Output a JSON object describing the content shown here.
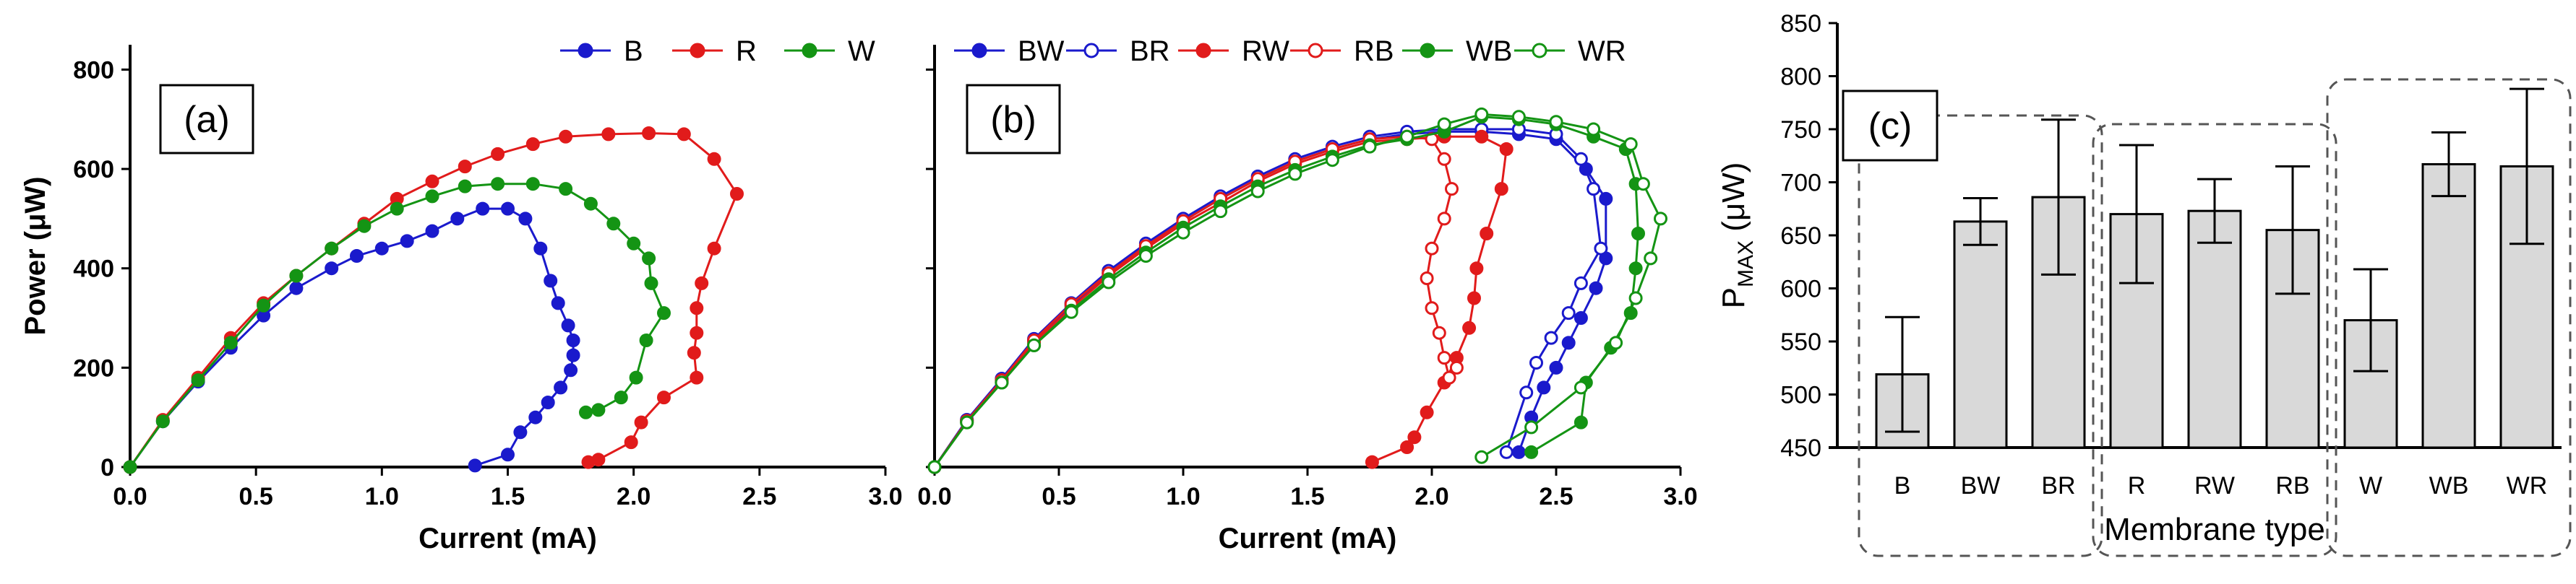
{
  "chart_data": [
    {
      "id": "a",
      "type": "line",
      "panel_label": "(a)",
      "xlabel": "Current (mA)",
      "ylabel": "Power (μW)",
      "xlim": [
        0,
        3.0
      ],
      "ylim": [
        0,
        850
      ],
      "xticks": [
        "0.0",
        "0.5",
        "1.0",
        "1.5",
        "2.0",
        "2.5",
        "3.0"
      ],
      "yticks": [
        "0",
        "200",
        "400",
        "600",
        "800"
      ],
      "legend_position": "top-right",
      "series": [
        {
          "name": "B",
          "color": "#1a1acc",
          "marker": "filled",
          "x": [
            0,
            0.13,
            0.27,
            0.4,
            0.53,
            0.66,
            0.8,
            0.9,
            1.0,
            1.1,
            1.2,
            1.3,
            1.4,
            1.5,
            1.57,
            1.63,
            1.67,
            1.7,
            1.74,
            1.76,
            1.76,
            1.75,
            1.71,
            1.66,
            1.61,
            1.55,
            1.5,
            1.37
          ],
          "y": [
            0,
            92,
            172,
            240,
            305,
            360,
            400,
            425,
            440,
            455,
            475,
            500,
            520,
            520,
            500,
            440,
            375,
            330,
            285,
            255,
            225,
            195,
            160,
            130,
            100,
            70,
            25,
            3
          ]
        },
        {
          "name": "R",
          "color": "#e11b1b",
          "marker": "filled",
          "x": [
            0,
            0.13,
            0.27,
            0.4,
            0.53,
            0.66,
            0.8,
            0.93,
            1.06,
            1.2,
            1.33,
            1.46,
            1.6,
            1.73,
            1.9,
            2.06,
            2.2,
            2.32,
            2.41,
            2.32,
            2.27,
            2.25,
            2.25,
            2.24,
            2.25,
            2.12,
            2.03,
            1.99,
            1.86,
            1.82
          ],
          "y": [
            0,
            95,
            180,
            260,
            330,
            385,
            440,
            490,
            540,
            575,
            605,
            630,
            650,
            665,
            670,
            672,
            670,
            620,
            550,
            440,
            370,
            320,
            270,
            230,
            180,
            140,
            90,
            50,
            15,
            10
          ]
        },
        {
          "name": "W",
          "color": "#149414",
          "marker": "filled",
          "x": [
            0,
            0.13,
            0.27,
            0.4,
            0.53,
            0.66,
            0.8,
            0.93,
            1.06,
            1.2,
            1.33,
            1.46,
            1.6,
            1.73,
            1.83,
            1.92,
            2.0,
            2.06,
            2.07,
            2.12,
            2.05,
            2.01,
            1.95,
            1.86,
            1.81
          ],
          "y": [
            0,
            92,
            175,
            250,
            325,
            385,
            440,
            485,
            520,
            545,
            565,
            570,
            570,
            560,
            530,
            490,
            450,
            420,
            370,
            310,
            255,
            180,
            140,
            115,
            110
          ]
        }
      ]
    },
    {
      "id": "b",
      "type": "line",
      "panel_label": "(b)",
      "xlabel": "Current (mA)",
      "ylabel": "",
      "xlim": [
        0,
        3.0
      ],
      "ylim": [
        0,
        850
      ],
      "xticks": [
        "0.0",
        "0.5",
        "1.0",
        "1.5",
        "2.0",
        "2.5",
        "3.0"
      ],
      "legend_position": "top",
      "series": [
        {
          "name": "BW",
          "color": "#1a1acc",
          "marker": "filled",
          "x": [
            0,
            0.13,
            0.27,
            0.4,
            0.55,
            0.7,
            0.85,
            1.0,
            1.15,
            1.3,
            1.45,
            1.6,
            1.75,
            1.9,
            2.05,
            2.2,
            2.35,
            2.5,
            2.62,
            2.7,
            2.7,
            2.66,
            2.6,
            2.55,
            2.5,
            2.45,
            2.4,
            2.35
          ],
          "y": [
            0,
            95,
            175,
            255,
            325,
            390,
            445,
            495,
            540,
            580,
            615,
            640,
            660,
            670,
            675,
            675,
            670,
            660,
            600,
            540,
            420,
            360,
            300,
            250,
            200,
            160,
            100,
            30
          ]
        },
        {
          "name": "BR",
          "color": "#1a1acc",
          "marker": "open",
          "x": [
            0,
            0.13,
            0.27,
            0.4,
            0.55,
            0.7,
            0.85,
            1.0,
            1.15,
            1.3,
            1.45,
            1.6,
            1.75,
            1.9,
            2.05,
            2.2,
            2.35,
            2.5,
            2.6,
            2.65,
            2.68,
            2.6,
            2.55,
            2.48,
            2.42,
            2.38,
            2.3
          ],
          "y": [
            0,
            95,
            178,
            258,
            330,
            395,
            450,
            500,
            545,
            585,
            620,
            645,
            665,
            675,
            680,
            680,
            680,
            670,
            620,
            560,
            440,
            370,
            310,
            260,
            210,
            150,
            30
          ]
        },
        {
          "name": "RW",
          "color": "#e11b1b",
          "marker": "filled",
          "x": [
            0,
            0.13,
            0.27,
            0.4,
            0.55,
            0.7,
            0.85,
            1.0,
            1.15,
            1.3,
            1.45,
            1.6,
            1.75,
            1.9,
            2.05,
            2.2,
            2.3,
            2.28,
            2.22,
            2.18,
            2.17,
            2.15,
            2.1,
            2.05,
            1.98,
            1.93,
            1.9,
            1.76
          ],
          "y": [
            0,
            92,
            172,
            250,
            320,
            385,
            440,
            490,
            532,
            575,
            610,
            635,
            655,
            660,
            665,
            665,
            640,
            560,
            470,
            400,
            340,
            280,
            220,
            170,
            110,
            60,
            40,
            10
          ]
        },
        {
          "name": "RB",
          "color": "#e11b1b",
          "marker": "open",
          "x": [
            0,
            0.13,
            0.27,
            0.4,
            0.55,
            0.7,
            0.85,
            1.0,
            1.15,
            1.3,
            1.45,
            1.6,
            1.75,
            1.9,
            2.0,
            2.05,
            2.08,
            2.05,
            2.0,
            1.98,
            2.0,
            2.03,
            2.05,
            2.07,
            2.1
          ],
          "y": [
            0,
            93,
            175,
            255,
            328,
            390,
            445,
            495,
            540,
            580,
            615,
            640,
            660,
            665,
            660,
            620,
            560,
            500,
            440,
            380,
            320,
            270,
            220,
            180,
            200
          ]
        },
        {
          "name": "WB",
          "color": "#149414",
          "marker": "filled",
          "x": [
            0,
            0.13,
            0.27,
            0.4,
            0.55,
            0.7,
            0.85,
            1.0,
            1.15,
            1.3,
            1.45,
            1.6,
            1.75,
            1.9,
            2.05,
            2.2,
            2.35,
            2.5,
            2.65,
            2.78,
            2.82,
            2.83,
            2.82,
            2.8,
            2.72,
            2.62,
            2.6,
            2.4
          ],
          "y": [
            0,
            90,
            170,
            245,
            315,
            378,
            432,
            482,
            525,
            565,
            598,
            625,
            648,
            660,
            675,
            705,
            700,
            690,
            665,
            640,
            570,
            470,
            400,
            310,
            240,
            170,
            90,
            30
          ]
        },
        {
          "name": "WR",
          "color": "#149414",
          "marker": "open",
          "x": [
            0,
            0.13,
            0.27,
            0.4,
            0.55,
            0.7,
            0.85,
            1.0,
            1.15,
            1.3,
            1.45,
            1.6,
            1.75,
            1.9,
            2.05,
            2.2,
            2.35,
            2.5,
            2.65,
            2.8,
            2.85,
            2.92,
            2.88,
            2.82,
            2.74,
            2.6,
            2.4,
            2.2
          ],
          "y": [
            0,
            90,
            170,
            245,
            312,
            372,
            425,
            472,
            515,
            555,
            590,
            618,
            645,
            665,
            690,
            710,
            705,
            695,
            680,
            650,
            570,
            500,
            420,
            340,
            250,
            160,
            80,
            20
          ]
        }
      ]
    },
    {
      "id": "c",
      "type": "bar",
      "panel_label": "(c)",
      "xlabel": "Membrane type",
      "ylabel": "P",
      "ylabel_sub": "MAX",
      "ylabel_unit": "(μW)",
      "ylim": [
        450,
        850
      ],
      "yticks": [
        "450",
        "500",
        "550",
        "600",
        "650",
        "700",
        "750",
        "800",
        "850"
      ],
      "categories": [
        "B",
        "BW",
        "BR",
        "R",
        "RW",
        "RB",
        "W",
        "WB",
        "WR"
      ],
      "values": [
        519,
        663,
        686,
        670,
        673,
        655,
        570,
        717,
        715
      ],
      "errors": [
        54,
        22,
        73,
        65,
        30,
        60,
        48,
        30,
        73
      ],
      "groups": [
        [
          0,
          2
        ],
        [
          3,
          5
        ],
        [
          6,
          8
        ]
      ],
      "bar_color": "#d9d9d9"
    }
  ]
}
